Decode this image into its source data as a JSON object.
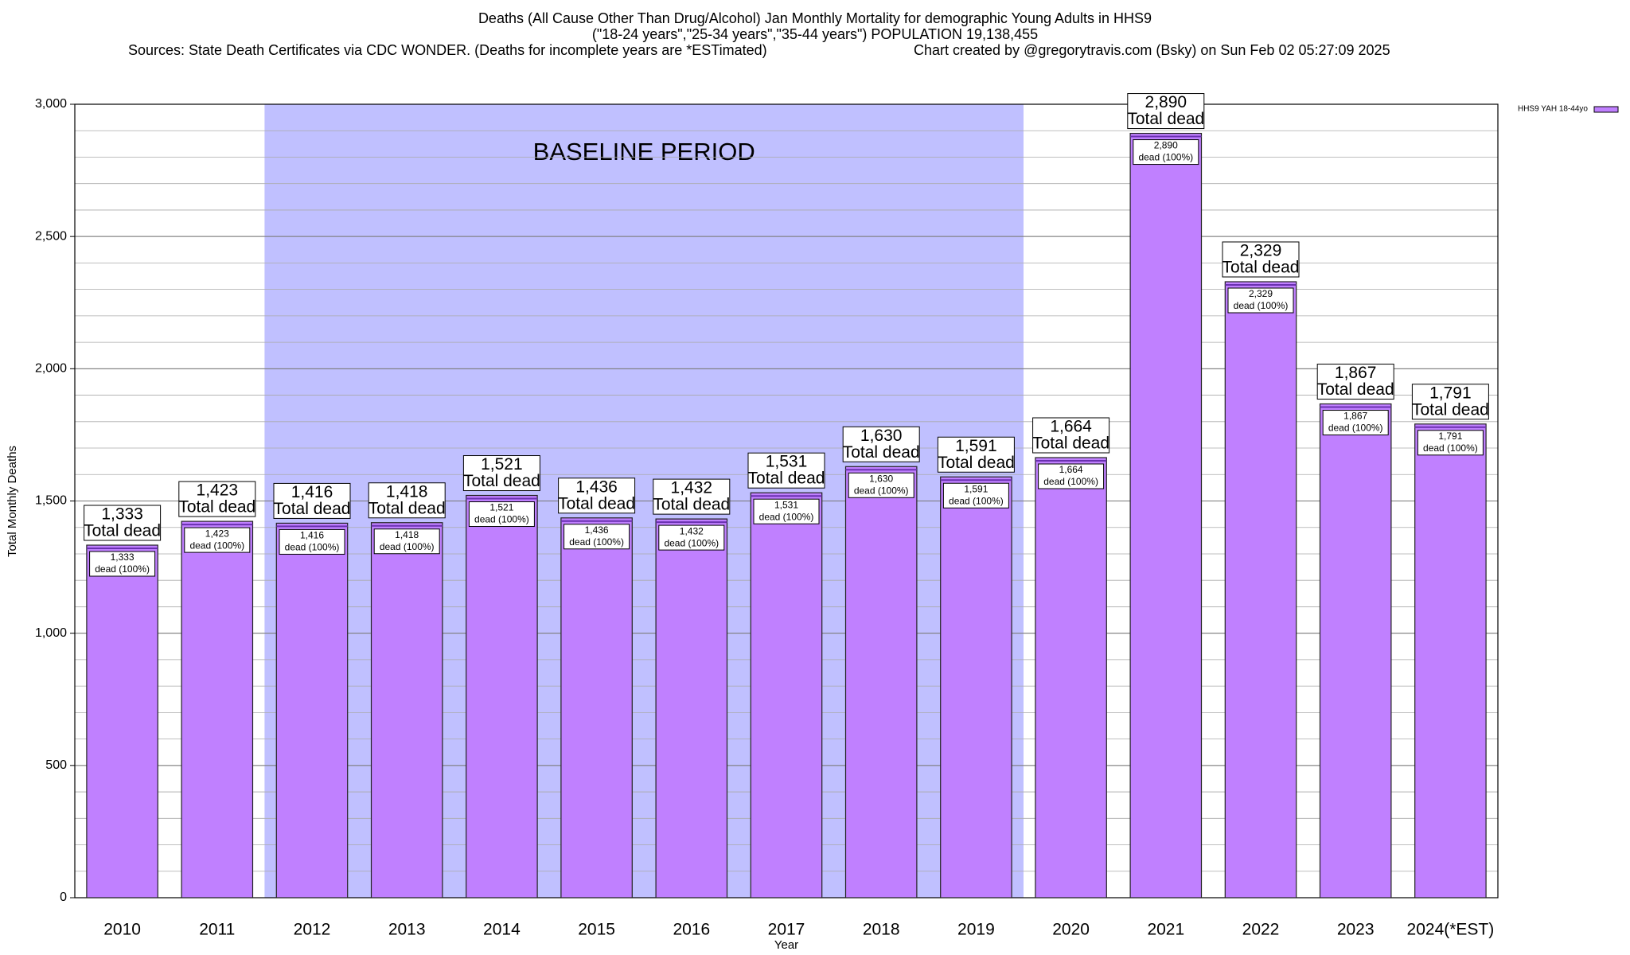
{
  "chart_data": {
    "type": "bar",
    "title": "Deaths (All Cause Other Than Drug/Alcohol) Jan Monthly Mortality for demographic Young Adults in HHS9",
    "subtitle": "(\"18-24 years\",\"25-34 years\",\"35-44 years\") POPULATION 19,138,455",
    "sources": "Sources: State Death Certificates via CDC WONDER. (Deaths for incomplete years are *ESTimated)",
    "credit": "Chart created by @gregorytravis.com (Bsky) on Sun Feb 02 05:27:09 2025",
    "x_label": "Year",
    "y_label": "Total Monthly Deaths",
    "categories": [
      "2010",
      "2011",
      "2012",
      "2013",
      "2014",
      "2015",
      "2016",
      "2017",
      "2018",
      "2019",
      "2020",
      "2021",
      "2022",
      "2023",
      "2024(*EST)"
    ],
    "series": [
      {
        "name": "HHS9 YAH 18-44yo",
        "color": "#c080ff",
        "values": [
          1333,
          1423,
          1416,
          1418,
          1521,
          1436,
          1432,
          1531,
          1630,
          1591,
          1664,
          2890,
          2329,
          1867,
          1791
        ],
        "value_labels": [
          "1,333",
          "1,423",
          "1,416",
          "1,418",
          "1,521",
          "1,436",
          "1,432",
          "1,531",
          "1,630",
          "1,591",
          "1,664",
          "2,890",
          "2,329",
          "1,867",
          "1,791"
        ]
      }
    ],
    "total_label": "Total dead",
    "inner_label": "dead (100%)",
    "baseline": {
      "label": "BASELINE PERIOD",
      "from": "2012",
      "to": "2019",
      "color": "#c0c0ff"
    },
    "ylim": [
      0,
      3000
    ],
    "yticks": [
      0,
      500,
      {
        "value": 1000,
        "label": "1,000"
      },
      {
        "value": 1500,
        "label": "1,500"
      },
      {
        "value": 2000,
        "label": "2,000"
      },
      {
        "value": 2500,
        "label": "2,500"
      },
      {
        "value": 3000,
        "label": "3,000"
      }
    ],
    "minor_grid_step": 100,
    "grid": true,
    "legend": "top-right"
  }
}
